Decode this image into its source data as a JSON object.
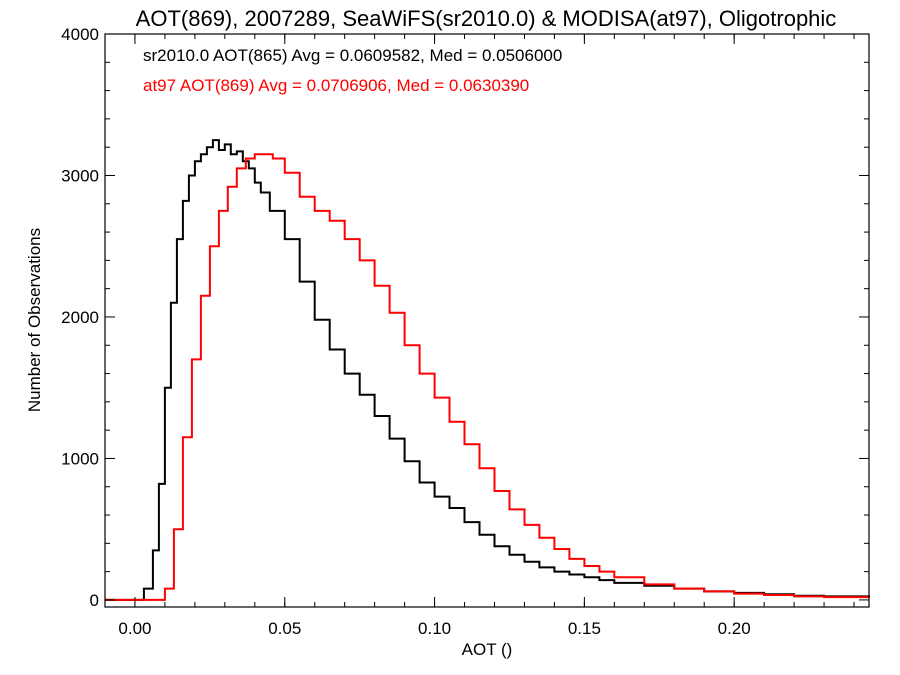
{
  "chart_data": {
    "type": "line",
    "step": true,
    "title": "AOT(869), 2007289, SeaWiFS(sr2010.0) & MODISA(at97), Oligotrophic",
    "xlabel": "AOT ()",
    "ylabel": "Number of Observations",
    "xlim": [
      -0.01,
      0.245
    ],
    "ylim": [
      -50,
      4000
    ],
    "xticks": [
      0.0,
      0.05,
      0.1,
      0.15,
      0.2
    ],
    "xtick_labels": [
      "0.00",
      "0.05",
      "0.10",
      "0.15",
      "0.20"
    ],
    "yticks": [
      0,
      1000,
      2000,
      3000,
      4000
    ],
    "ytick_labels": [
      "0",
      "1000",
      "2000",
      "3000",
      "4000"
    ],
    "grid": false,
    "legend_position": "top-left",
    "series": [
      {
        "name": "sr2010.0 AOT(865) Avg = 0.0609582, Med = 0.0506000",
        "color": "#000000",
        "x": [
          -0.01,
          0.0,
          0.003,
          0.006,
          0.008,
          0.01,
          0.012,
          0.014,
          0.016,
          0.018,
          0.02,
          0.022,
          0.024,
          0.026,
          0.028,
          0.03,
          0.032,
          0.034,
          0.036,
          0.038,
          0.04,
          0.042,
          0.045,
          0.05,
          0.055,
          0.06,
          0.065,
          0.07,
          0.075,
          0.08,
          0.085,
          0.09,
          0.095,
          0.1,
          0.105,
          0.11,
          0.115,
          0.12,
          0.125,
          0.13,
          0.135,
          0.14,
          0.145,
          0.15,
          0.155,
          0.16,
          0.17,
          0.18,
          0.19,
          0.2,
          0.21,
          0.22,
          0.23,
          0.245
        ],
        "y": [
          0,
          0,
          80,
          350,
          820,
          1500,
          2100,
          2550,
          2820,
          3000,
          3100,
          3150,
          3200,
          3250,
          3180,
          3220,
          3150,
          3170,
          3100,
          3050,
          2950,
          2880,
          2750,
          2550,
          2250,
          1980,
          1770,
          1600,
          1450,
          1300,
          1140,
          980,
          830,
          730,
          650,
          550,
          460,
          380,
          320,
          270,
          230,
          200,
          180,
          160,
          140,
          120,
          100,
          80,
          60,
          50,
          40,
          30,
          25,
          20
        ]
      },
      {
        "name": "at97 AOT(869) Avg = 0.0706906, Med = 0.0630390",
        "color": "#ff0000",
        "x": [
          -0.01,
          0.0,
          0.005,
          0.01,
          0.013,
          0.016,
          0.019,
          0.022,
          0.025,
          0.028,
          0.031,
          0.034,
          0.037,
          0.04,
          0.043,
          0.046,
          0.05,
          0.055,
          0.06,
          0.065,
          0.07,
          0.075,
          0.08,
          0.085,
          0.09,
          0.095,
          0.1,
          0.105,
          0.11,
          0.115,
          0.12,
          0.125,
          0.13,
          0.135,
          0.14,
          0.145,
          0.15,
          0.155,
          0.16,
          0.17,
          0.18,
          0.19,
          0.2,
          0.21,
          0.22,
          0.23,
          0.245
        ],
        "y": [
          0,
          0,
          0,
          80,
          500,
          1150,
          1700,
          2150,
          2500,
          2750,
          2920,
          3050,
          3120,
          3150,
          3150,
          3120,
          3020,
          2850,
          2750,
          2680,
          2550,
          2400,
          2220,
          2030,
          1800,
          1600,
          1430,
          1260,
          1100,
          930,
          770,
          640,
          530,
          440,
          360,
          290,
          240,
          200,
          160,
          110,
          80,
          60,
          45,
          35,
          25,
          20,
          15
        ]
      }
    ]
  }
}
